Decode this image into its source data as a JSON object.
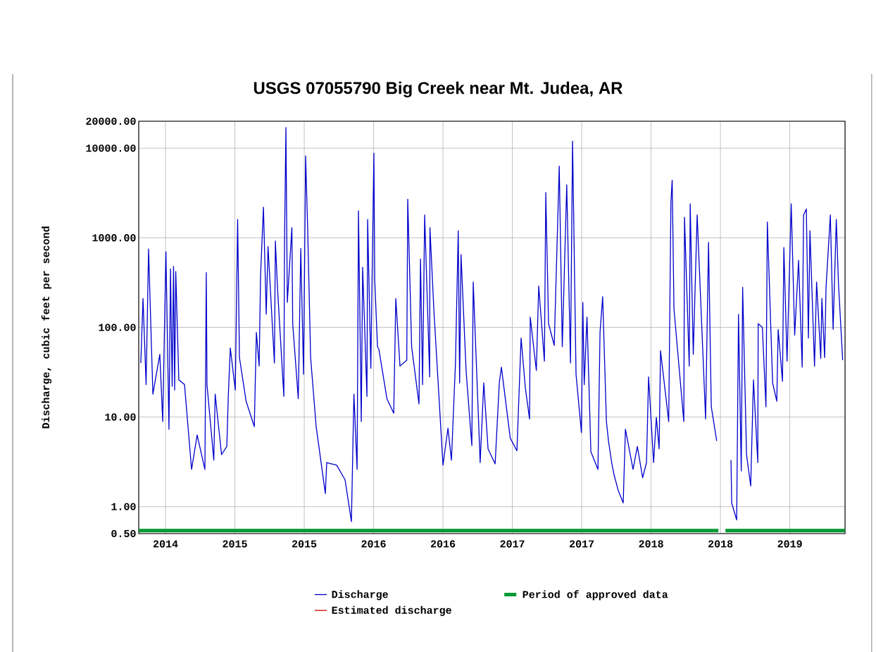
{
  "chart_data": {
    "type": "line",
    "title": "USGS 07055790 Big Creek near Mt. Judea, AR",
    "ylabel": "Discharge, cubic feet per second",
    "log": "y",
    "grid": true,
    "legend": "bottom",
    "xlim": [
      2014.307,
      2019.398
    ],
    "xticks": [
      {
        "value": 2014.5,
        "label": "2014"
      },
      {
        "value": 2015.0,
        "label": "2015"
      },
      {
        "value": 2015.5,
        "label": "2015"
      },
      {
        "value": 2016.0,
        "label": "2016"
      },
      {
        "value": 2016.5,
        "label": "2016"
      },
      {
        "value": 2017.0,
        "label": "2017"
      },
      {
        "value": 2017.5,
        "label": "2017"
      },
      {
        "value": 2018.0,
        "label": "2018"
      },
      {
        "value": 2018.5,
        "label": "2018"
      },
      {
        "value": 2019.0,
        "label": "2019"
      }
    ],
    "ylim": [
      0.5,
      20000
    ],
    "yticks": [
      {
        "value": 0.5,
        "label": "0.50"
      },
      {
        "value": 1,
        "label": "1.00"
      },
      {
        "value": 10,
        "label": "10.00"
      },
      {
        "value": 100,
        "label": "100.00"
      },
      {
        "value": 1000,
        "label": "1000.00"
      },
      {
        "value": 10000,
        "label": "10000.00"
      },
      {
        "value": 20000,
        "label": "20000.00"
      }
    ],
    "series": [
      {
        "name": "Discharge",
        "color": "#0000cc",
        "x": [
          2014.322,
          2014.338,
          2014.36,
          2014.378,
          2014.409,
          2014.459,
          2014.48,
          2014.503,
          2014.525,
          2014.536,
          2014.548,
          2014.558,
          2014.566,
          2014.574,
          2014.596,
          2014.637,
          2014.688,
          2014.728,
          2014.784,
          2014.794,
          2014.799,
          2014.848,
          2014.858,
          2014.904,
          2014.942,
          2014.952,
          2014.967,
          2015.003,
          2015.02,
          2015.033,
          2015.081,
          2015.14,
          2015.155,
          2015.175,
          2015.185,
          2015.206,
          2015.226,
          2015.239,
          2015.285,
          2015.292,
          2015.307,
          2015.353,
          2015.358,
          2015.368,
          2015.378,
          2015.411,
          2015.417,
          2015.457,
          2015.475,
          2015.495,
          2015.51,
          2015.525,
          2015.546,
          2015.586,
          2015.652,
          2015.662,
          2015.733,
          2015.794,
          2015.84,
          2015.858,
          2015.881,
          2015.891,
          2015.911,
          2015.921,
          2015.952,
          2015.957,
          2015.98,
          2016.002,
          2016.008,
          2016.028,
          2016.038,
          2016.096,
          2016.145,
          2016.16,
          2016.19,
          2016.239,
          2016.246,
          2016.274,
          2016.327,
          2016.338,
          2016.353,
          2016.368,
          2016.404,
          2016.406,
          2016.434,
          2016.5,
          2016.536,
          2016.561,
          2016.59,
          2016.61,
          2016.62,
          2016.63,
          2016.667,
          2016.708,
          2016.718,
          2016.768,
          2016.794,
          2016.825,
          2016.876,
          2016.906,
          2016.921,
          2016.985,
          2017.033,
          2017.063,
          2017.094,
          2017.124,
          2017.129,
          2017.173,
          2017.19,
          2017.231,
          2017.241,
          2017.261,
          2017.302,
          2017.338,
          2017.36,
          2017.392,
          2017.419,
          2017.434,
          2017.459,
          2017.498,
          2017.508,
          2017.518,
          2017.538,
          2017.566,
          2017.617,
          2017.632,
          2017.651,
          2017.678,
          2017.693,
          2017.716,
          2017.732,
          2017.764,
          2017.799,
          2017.815,
          2017.87,
          2017.901,
          2017.939,
          2017.967,
          2017.982,
          2018.018,
          2018.038,
          2018.058,
          2018.068,
          2018.127,
          2018.143,
          2018.152,
          2018.165,
          2018.236,
          2018.241,
          2018.275,
          2018.282,
          2018.304,
          2018.332,
          2018.393,
          2018.414,
          2018.434,
          2018.473,
          2018.52,
          2018.576,
          2018.581,
          2018.617,
          2018.63,
          2018.65,
          2018.66,
          2018.688,
          2018.718,
          2018.738,
          2018.769,
          2018.772,
          2018.802,
          2018.828,
          2018.838,
          2018.876,
          2018.906,
          2018.916,
          2018.947,
          2018.957,
          2018.98,
          2019.01,
          2019.035,
          2019.063,
          2019.089,
          2019.099,
          2019.119,
          2019.134,
          2019.145,
          2019.178,
          2019.193,
          2019.223,
          2019.231,
          2019.251,
          2019.261,
          2019.292,
          2019.312,
          2019.335,
          2019.351,
          2019.381
        ],
        "values": [
          40,
          210,
          23,
          750,
          18,
          50,
          8.9,
          700,
          7.3,
          450,
          22,
          480,
          20,
          420,
          26,
          23,
          2.6,
          6.3,
          2.6,
          410,
          23,
          3.3,
          18,
          3.8,
          4.7,
          16,
          59,
          20,
          1600,
          46,
          15,
          7.8,
          88,
          37,
          370,
          2200,
          140,
          800,
          40,
          920,
          280,
          17,
          920,
          17000,
          190,
          1300,
          110,
          16,
          760,
          30,
          8200,
          1200,
          46,
          7.8,
          1.4,
          3.1,
          2.9,
          2.0,
          0.68,
          18,
          2.6,
          2000,
          8.9,
          470,
          17,
          1600,
          35,
          8800,
          340,
          61,
          57,
          16,
          11,
          210,
          37,
          43,
          2700,
          61,
          14,
          580,
          23,
          1800,
          28,
          1300,
          160,
          2.9,
          7.5,
          3.3,
          40,
          1200,
          24,
          650,
          32,
          4.8,
          320,
          3.1,
          24,
          4.4,
          3.0,
          24,
          36,
          5.8,
          4.2,
          76,
          21,
          9.5,
          130,
          33,
          290,
          42,
          3200,
          110,
          63,
          6300,
          61,
          3900,
          40,
          12000,
          30,
          6.7,
          190,
          23,
          130,
          4.1,
          2.6,
          88,
          220,
          8.9,
          5.4,
          3.1,
          2.3,
          1.5,
          1.1,
          7.3,
          2.6,
          4.7,
          2.1,
          3.1,
          28,
          3.1,
          9.9,
          4.4,
          55,
          8.9,
          2500,
          4400,
          160,
          8.9,
          1700,
          37,
          2400,
          50,
          1800,
          9.5,
          890,
          13,
          5.4,
          null,
          3.3,
          1.1,
          0.71,
          140,
          2.5,
          280,
          3.8,
          1.7,
          26,
          3.1,
          110,
          100,
          13,
          1500,
          24,
          15,
          95,
          25,
          780,
          42,
          2400,
          82,
          560,
          36,
          1800,
          2100,
          76,
          1200,
          37,
          320,
          45,
          210,
          46,
          280,
          1800,
          95,
          1600,
          300,
          43
        ]
      },
      {
        "name": "Period of approved data",
        "type": "step",
        "color": "#009933",
        "x": [
          2014.307,
          2018.485,
          2018.51,
          2018.536,
          2019.398
        ],
        "values": [
          0.54,
          0.54,
          null,
          0.54,
          0.54
        ]
      },
      {
        "name": "Estimated discharge",
        "color": "#cc0000"
      }
    ]
  }
}
